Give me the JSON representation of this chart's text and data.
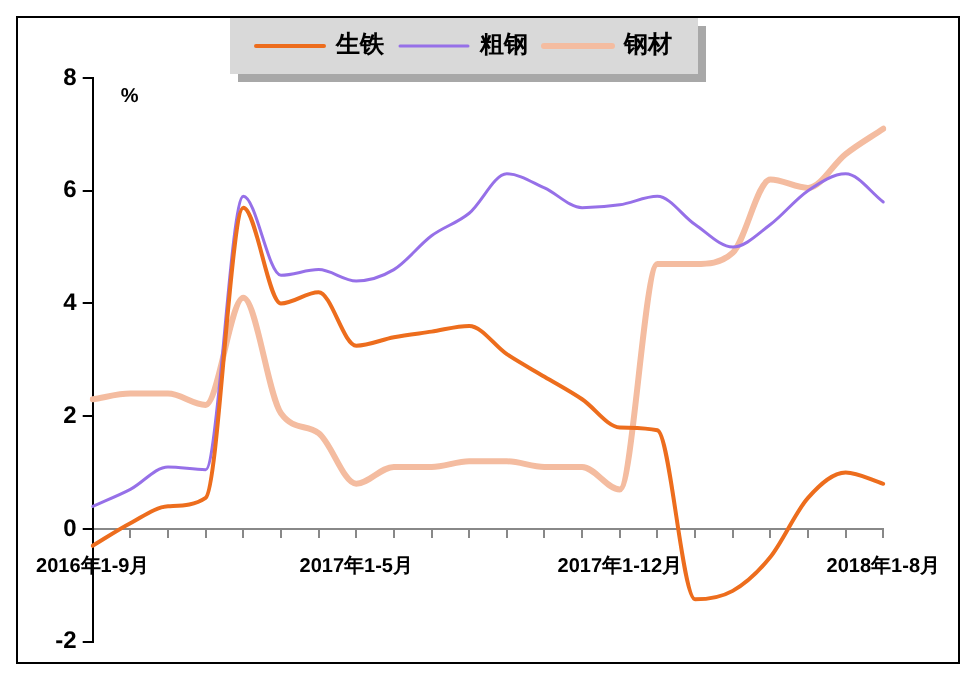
{
  "chart_data": {
    "type": "line",
    "ylabel": "%",
    "categories": [
      "2016年1-9月",
      null,
      null,
      null,
      null,
      null,
      null,
      "2017年1-5月",
      null,
      null,
      null,
      null,
      null,
      null,
      "2017年1-12月",
      null,
      null,
      null,
      null,
      null,
      null,
      "2018年1-8月"
    ],
    "series": [
      {
        "name": "生铁",
        "color": "#ed6d1d",
        "values": [
          -0.3,
          0.1,
          0.4,
          0.55,
          5.7,
          4.0,
          4.2,
          3.25,
          3.4,
          3.5,
          3.6,
          3.1,
          2.7,
          2.3,
          1.8,
          1.75,
          -1.25,
          -1.1,
          -0.5,
          0.55,
          1.0,
          0.8
        ]
      },
      {
        "name": "粗钢",
        "color": "#9670e8",
        "values": [
          0.4,
          0.7,
          1.1,
          1.05,
          5.9,
          4.5,
          4.6,
          4.4,
          4.6,
          5.2,
          5.6,
          6.3,
          6.05,
          5.7,
          5.75,
          5.9,
          5.4,
          5.0,
          5.4,
          6.0,
          6.3,
          5.8
        ]
      },
      {
        "name": "钢材",
        "color": "#f4bca0",
        "values": [
          2.3,
          2.4,
          2.4,
          2.2,
          4.1,
          2.05,
          1.7,
          0.8,
          1.1,
          1.1,
          1.2,
          1.2,
          1.1,
          1.1,
          0.7,
          4.7,
          4.7,
          4.9,
          6.2,
          6.05,
          6.65,
          7.1
        ]
      }
    ],
    "ylim": [
      -2,
      8
    ],
    "yticks": [
      -2,
      0,
      2,
      4,
      6,
      8
    ],
    "grid": false,
    "legend": "top",
    "marker": "none",
    "line_style": "solid"
  }
}
